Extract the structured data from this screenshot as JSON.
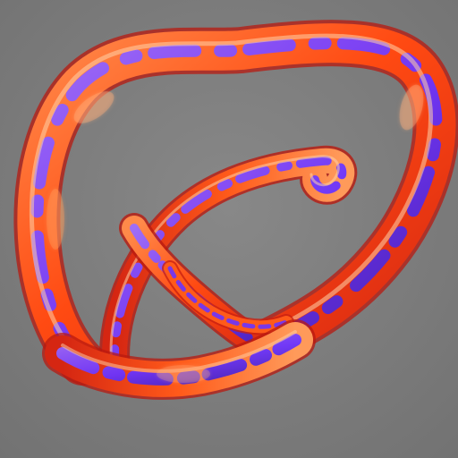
{
  "scene": {
    "subject": "abstract-3d-tube-knot-render",
    "colors": {
      "background": "#7a7a7a",
      "tube_primary": "#ff4a12",
      "tube_highlight": "#ffb07a",
      "tube_shadow": "#c81e0c",
      "stripe_primary": "#6a34ff",
      "stripe_secondary": "#9a6cff",
      "stripe_dark": "#3b1fb4"
    }
  }
}
